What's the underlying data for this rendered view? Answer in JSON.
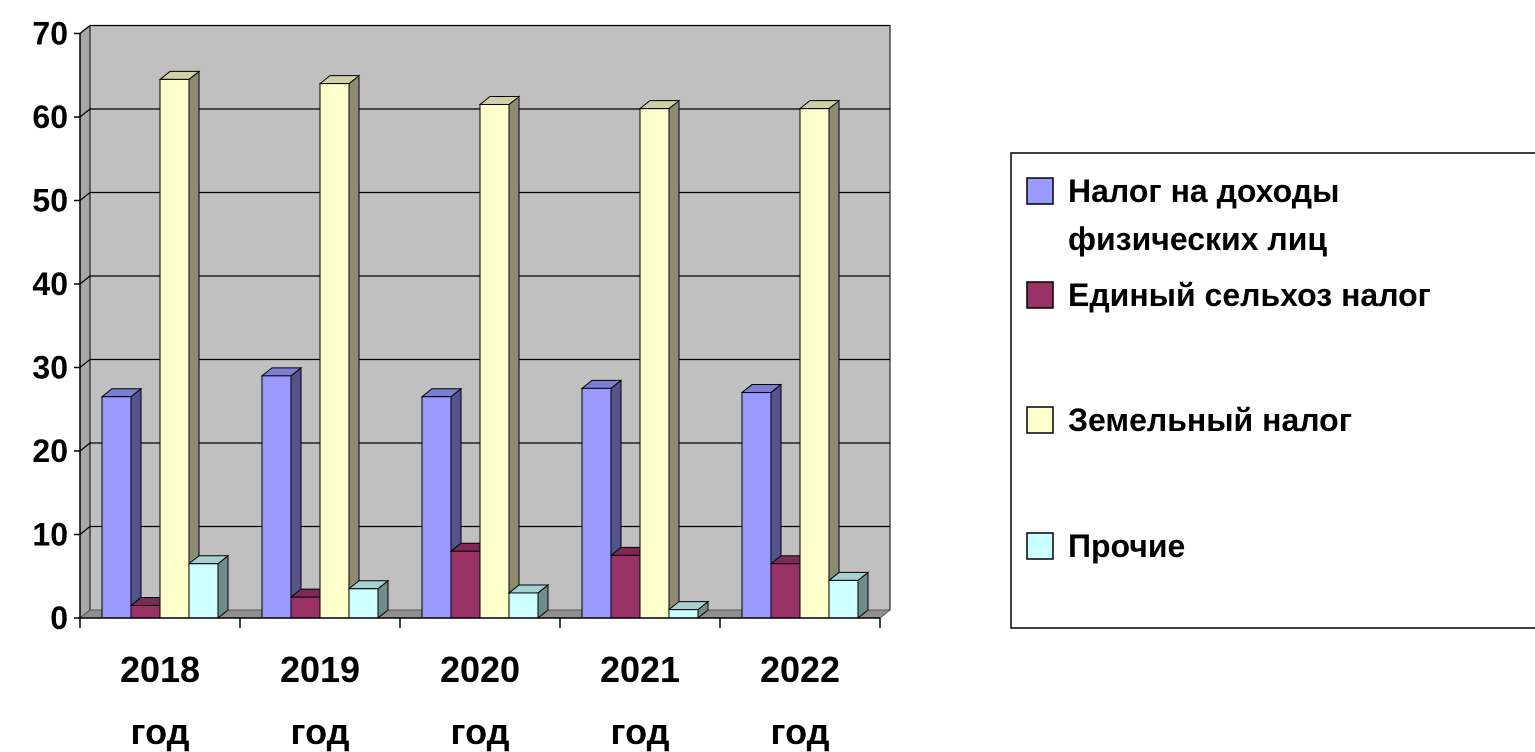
{
  "chart_data": {
    "type": "bar",
    "style": "3d-clustered-column",
    "categories": [
      [
        "2018",
        "год"
      ],
      [
        "2019",
        "год"
      ],
      [
        "2020",
        "год"
      ],
      [
        "2021",
        "год"
      ],
      [
        "2022",
        "год"
      ]
    ],
    "series": [
      {
        "name_lines": [
          "Налог на доходы",
          "физических лиц"
        ],
        "color": "#9999ff",
        "values": [
          26.5,
          29,
          26.5,
          27.5,
          27
        ]
      },
      {
        "name_lines": [
          "Единый сельхоз налог"
        ],
        "color": "#993366",
        "values": [
          1.5,
          2.5,
          8,
          7.5,
          6.5
        ]
      },
      {
        "name_lines": [
          "Земельный налог"
        ],
        "color": "#ffffcc",
        "values": [
          64.5,
          64,
          61.5,
          61,
          61
        ]
      },
      {
        "name_lines": [
          "Прочие"
        ],
        "color": "#ccffff",
        "values": [
          6.5,
          3.5,
          3,
          1,
          4.5
        ]
      }
    ],
    "y_ticks": [
      "0",
      "10",
      "20",
      "30",
      "40",
      "50",
      "60",
      "70"
    ],
    "ylim": [
      0,
      70
    ],
    "grid": true,
    "legend_position": "right",
    "plot_background": "#c0c0c0"
  }
}
